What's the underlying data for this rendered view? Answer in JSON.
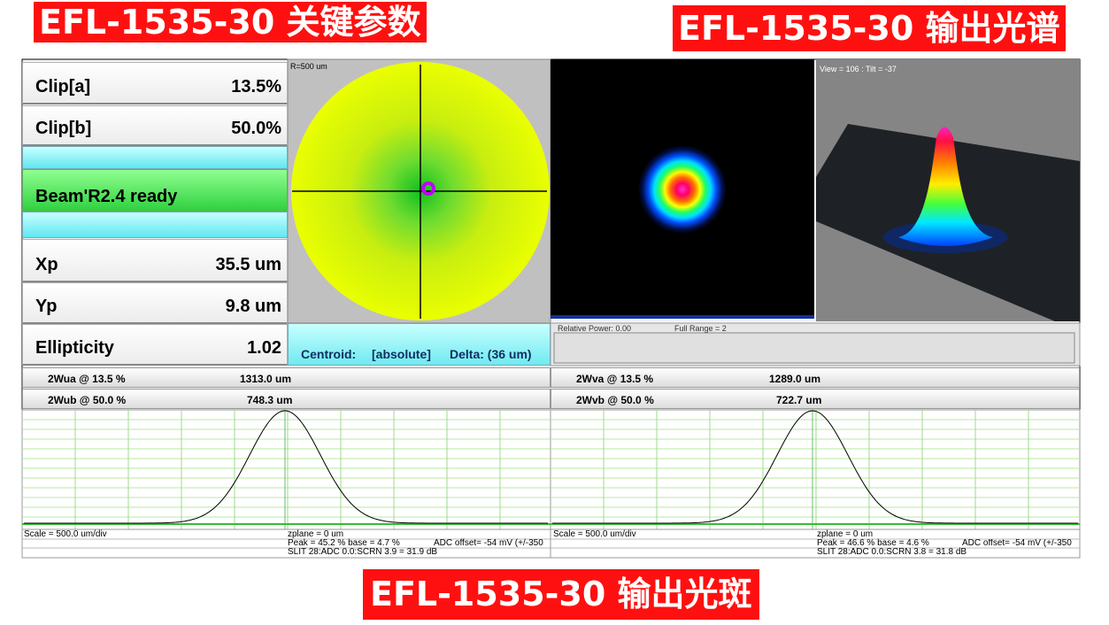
{
  "banners": {
    "params": "EFL-1535-30 关键参数",
    "spectrum": "EFL-1535-30 输出光谱",
    "spot": "EFL-1535-30 输出光斑"
  },
  "params": [
    {
      "label": "Clip[a]",
      "value": "13.5%"
    },
    {
      "label": "Clip[b]",
      "value": "50.0%"
    },
    {
      "label": "Xp",
      "value": "35.5 um"
    },
    {
      "label": "Yp",
      "value": "9.8 um"
    },
    {
      "label": "Ellipticity",
      "value": "1.02"
    }
  ],
  "status": "Beam'R2.4 ready",
  "centroid": {
    "radius": "R=500 um",
    "mode": "Centroid:",
    "reference": "[absolute]",
    "delta": "Delta: (36 um)"
  },
  "view_3d": "View = 106 : Tilt = -37",
  "power": {
    "relative": "Relative Power: 0.00",
    "range": "Full Range = 2"
  },
  "profiles": [
    {
      "widths": [
        {
          "label": "2Wua @ 13.5 %",
          "value": "1313.0 um"
        },
        {
          "label": "2Wub @ 50.0 %",
          "value": "748.3 um"
        }
      ],
      "scale": "Scale = 500.0 um/div",
      "zplane": "zplane = 0 um",
      "peak": "Peak = 45.2 %  base = 4.7 %",
      "adc": "ADC offset= -54 mV (+/-350",
      "slit": "SLIT 28:ADC 0.0:SCRN 3.9 = 31.9 dB"
    },
    {
      "widths": [
        {
          "label": "2Wva @ 13.5 %",
          "value": "1289.0 um"
        },
        {
          "label": "2Wvb @ 50.0 %",
          "value": "722.7 um"
        }
      ],
      "scale": "Scale = 500.0 um/div",
      "zplane": "zplane = 0 um",
      "peak": "Peak = 46.6 %  base = 4.6 %",
      "adc": "ADC offset= -54 mV (+/-350",
      "slit": "SLIT 28:ADC 0.0:SCRN 3.8 = 31.8 dB"
    }
  ]
}
